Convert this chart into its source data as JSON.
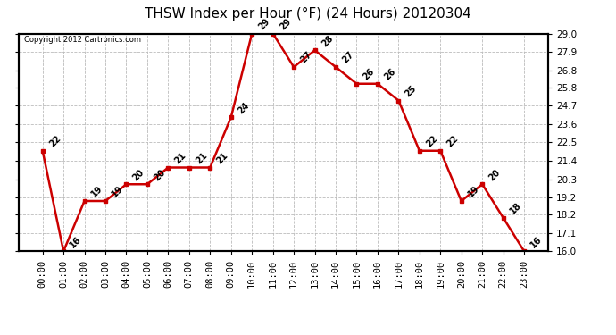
{
  "title": "THSW Index per Hour (°F) (24 Hours) 20120304",
  "copyright": "Copyright 2012 Cartronics.com",
  "hours": [
    "00:00",
    "01:00",
    "02:00",
    "03:00",
    "04:00",
    "05:00",
    "06:00",
    "07:00",
    "08:00",
    "09:00",
    "10:00",
    "11:00",
    "12:00",
    "13:00",
    "14:00",
    "15:00",
    "16:00",
    "17:00",
    "18:00",
    "19:00",
    "20:00",
    "21:00",
    "22:00",
    "23:00"
  ],
  "values": [
    22,
    16,
    19,
    19,
    20,
    20,
    21,
    21,
    21,
    24,
    29,
    29,
    27,
    28,
    27,
    26,
    26,
    25,
    22,
    22,
    19,
    20,
    18,
    16
  ],
  "ylim": [
    16.0,
    29.0
  ],
  "yticks": [
    16.0,
    17.1,
    18.2,
    19.2,
    20.3,
    21.4,
    22.5,
    23.6,
    24.7,
    25.8,
    26.8,
    27.9,
    29.0
  ],
  "line_color": "#cc0000",
  "marker_color": "#cc0000",
  "grid_color": "#bbbbbb",
  "bg_color": "white",
  "title_fontsize": 11,
  "label_fontsize": 7.5,
  "annotation_fontsize": 7,
  "copyright_fontsize": 6
}
